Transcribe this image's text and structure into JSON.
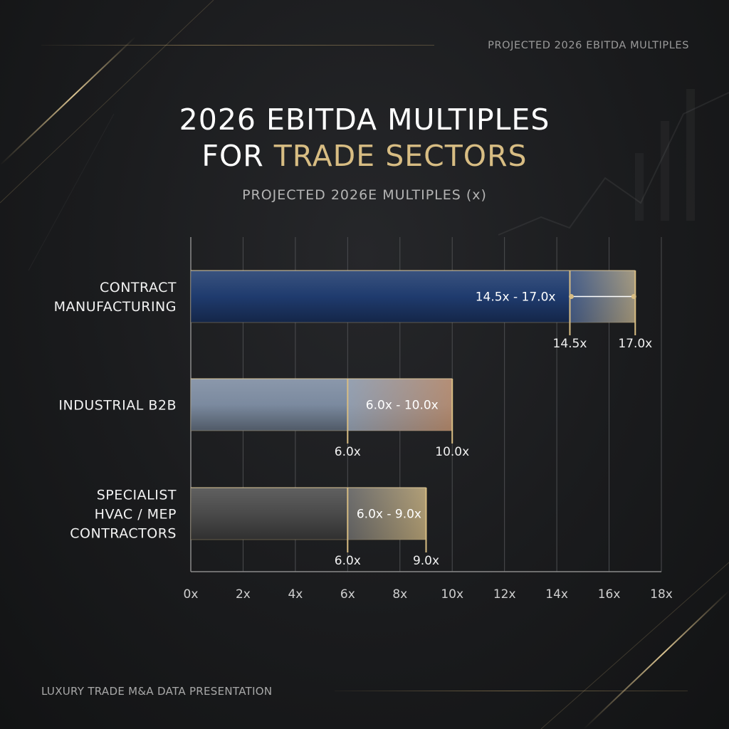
{
  "header": {
    "top_label": "PROJECTED 2026 EBITDA MULTIPLES",
    "title_line1": "2026 EBITDA MULTIPLES",
    "title_line2_prefix": "FOR ",
    "title_line2_accent": "TRADE SECTORS",
    "subtitle": "PROJECTED 2026E MULTIPLES (x)"
  },
  "footer": {
    "text": "LUXURY TRADE M&A DATA PRESENTATION"
  },
  "colors": {
    "gold": "#d8bd83",
    "navy": "#1f3b6e",
    "slate": "#7b8a9f",
    "charcoal": "#4a4a4a",
    "copper": "#c98a5c"
  },
  "chart_data": {
    "type": "bar",
    "orientation": "horizontal",
    "grid": true,
    "xlim": [
      0,
      18
    ],
    "x_ticks": [
      "0x",
      "2x",
      "4x",
      "6x",
      "8x",
      "10x",
      "12x",
      "14x",
      "16x",
      "18x"
    ],
    "categories": [
      {
        "label_lines": [
          "CONTRACT",
          "MANUFACTURING"
        ],
        "low": 14.5,
        "high": 17.0,
        "range_label": "14.5x - 17.0x",
        "low_label": "14.5x",
        "high_label": "17.0x",
        "color": "#1f3b6e"
      },
      {
        "label_lines": [
          "INDUSTRIAL B2B"
        ],
        "low": 6.0,
        "high": 10.0,
        "range_label": "6.0x - 10.0x",
        "low_label": "6.0x",
        "high_label": "10.0x",
        "color": "#7b8a9f"
      },
      {
        "label_lines": [
          "SPECIALIST",
          "HVAC / MEP",
          "CONTRACTORS"
        ],
        "low": 6.0,
        "high": 9.0,
        "range_label": "6.0x - 9.0x",
        "low_label": "6.0x",
        "high_label": "9.0x",
        "color": "#4a4a4a"
      }
    ]
  }
}
